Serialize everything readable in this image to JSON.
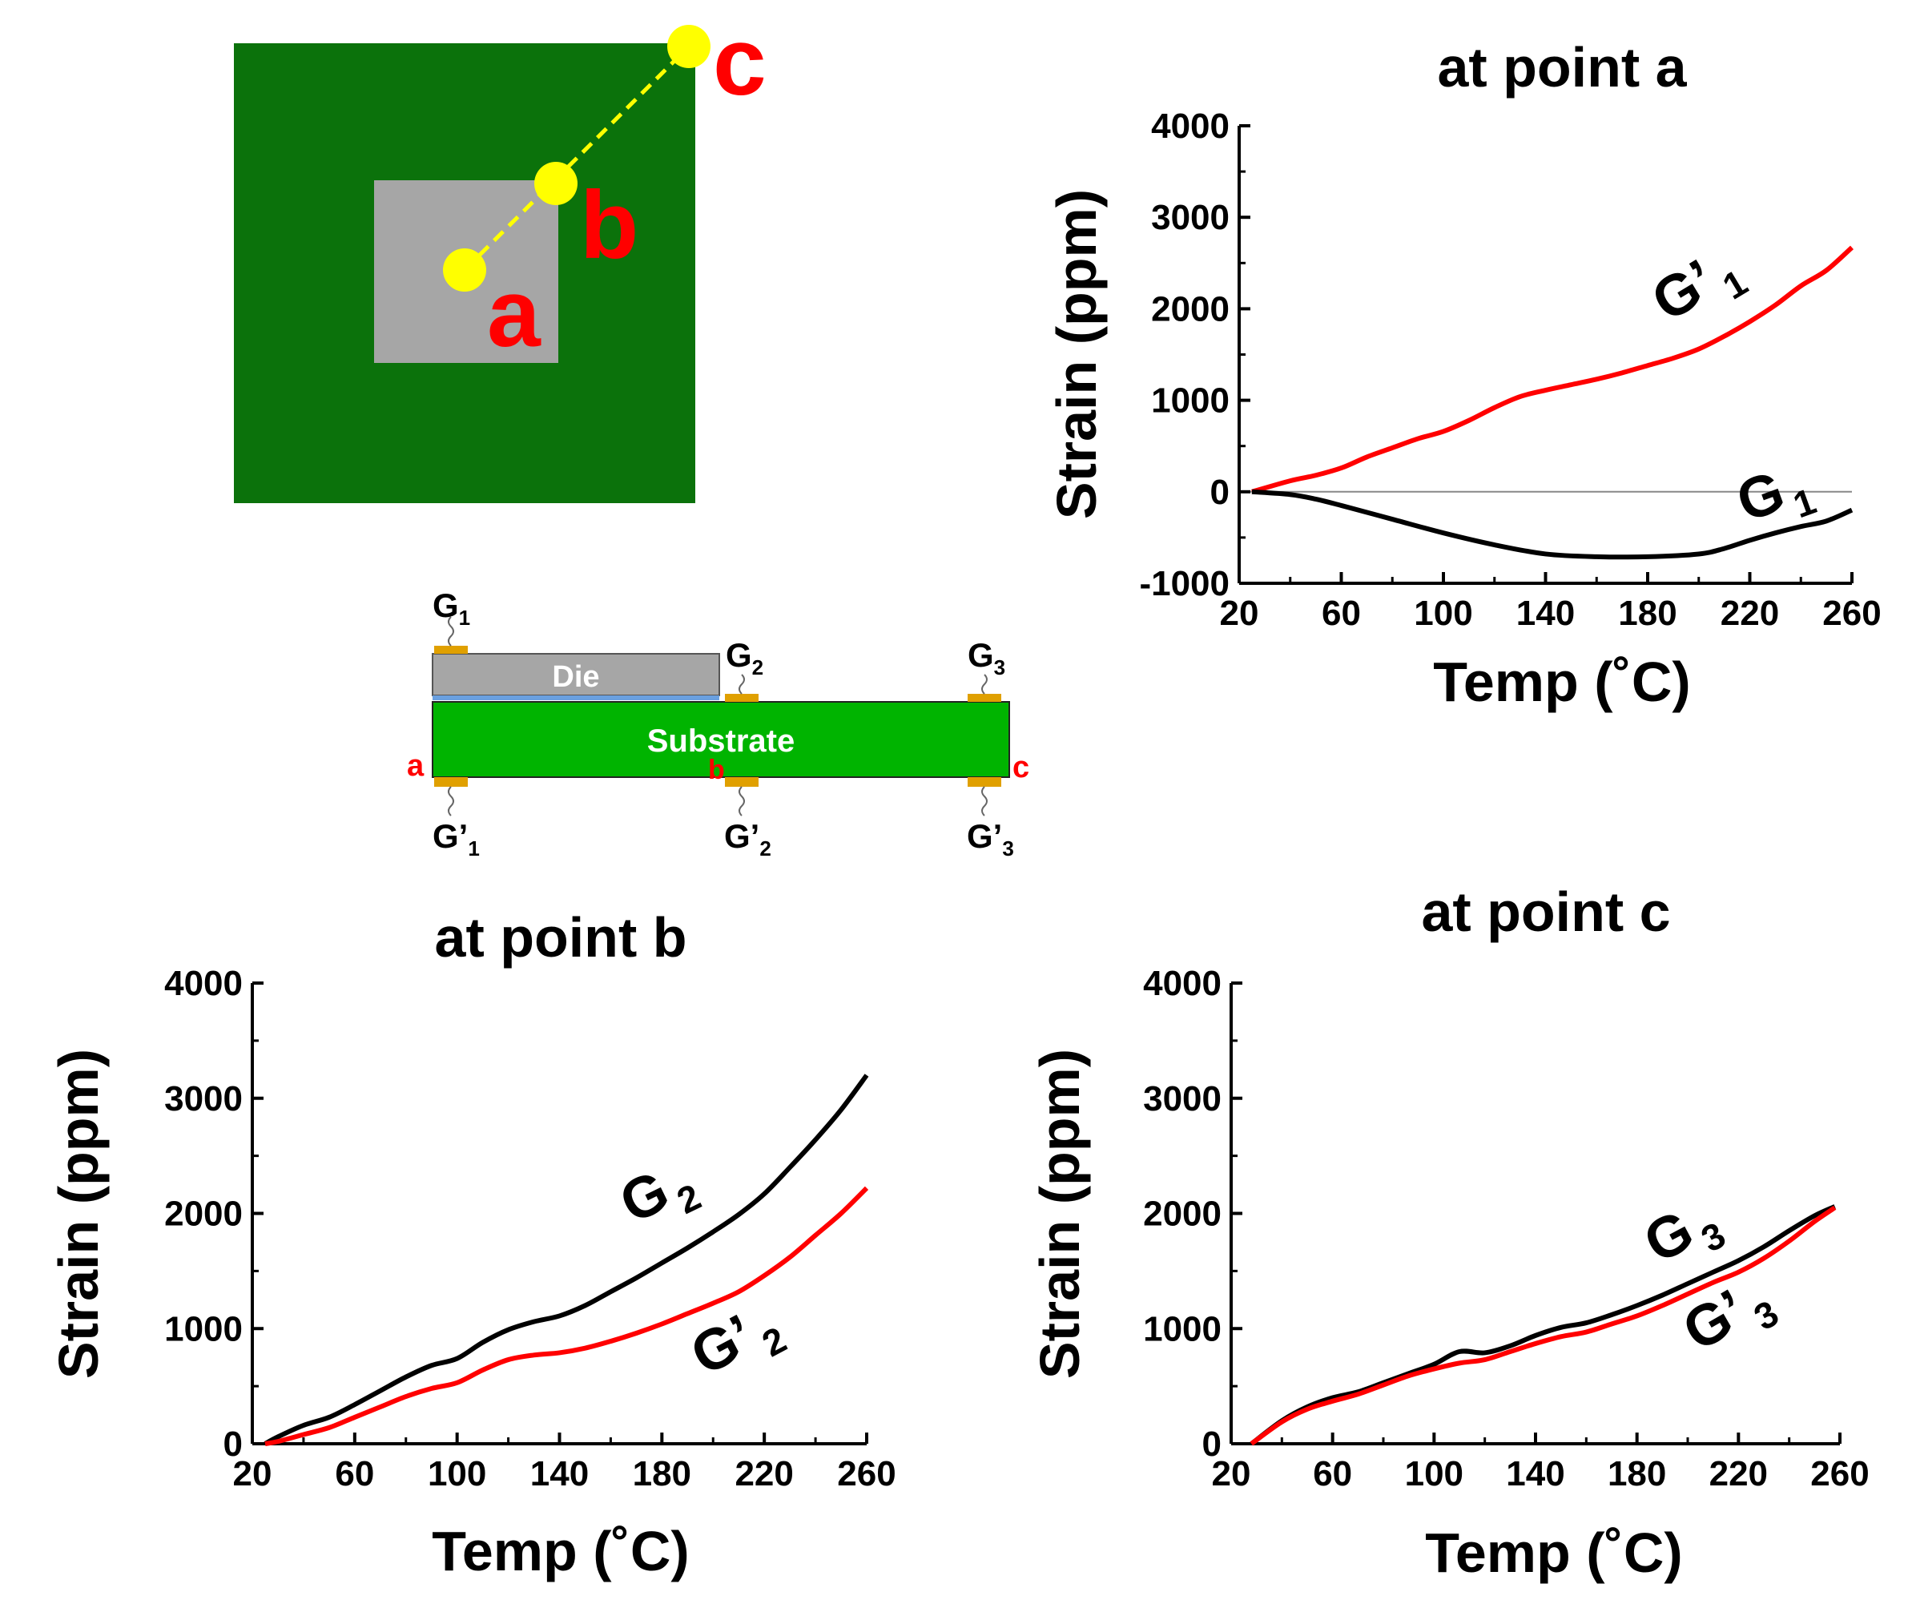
{
  "schematic": {
    "point_labels": [
      "a",
      "b",
      "c"
    ],
    "die_label": "Die",
    "substrate_label": "Substrate",
    "cross_section_edge_labels": [
      "a",
      "b",
      "c"
    ],
    "gauges_top": [
      {
        "base": "G",
        "prime": "",
        "sub": "1"
      },
      {
        "base": "G",
        "prime": "",
        "sub": "2"
      },
      {
        "base": "G",
        "prime": "",
        "sub": "3"
      }
    ],
    "gauges_bottom": [
      {
        "base": "G",
        "prime": "’",
        "sub": "1"
      },
      {
        "base": "G",
        "prime": "’",
        "sub": "2"
      },
      {
        "base": "G",
        "prime": "’",
        "sub": "3"
      }
    ],
    "colors": {
      "substrate_top_view": "#0b720b",
      "die": "#a6a6a6",
      "points": "#ffff00",
      "point_labels": "#ff0000",
      "substrate": "#00b400",
      "pad": "#e0a000"
    }
  },
  "chart_data": [
    {
      "id": "a",
      "type": "line",
      "title": "at point a",
      "xlabel": "Temp (˚C)",
      "ylabel": "Strain (ppm)",
      "xlim": [
        20,
        260
      ],
      "ylim": [
        -1000,
        4000
      ],
      "xticks": [
        "20",
        "60",
        "100",
        "140",
        "180",
        "220",
        "260"
      ],
      "yticks": [
        "-1000",
        "0",
        "1000",
        "2000",
        "3000",
        "4000"
      ],
      "zero_line": true,
      "series": [
        {
          "name": "G’1",
          "label_base": "G’",
          "label_sub": "1",
          "color": "#ff0000",
          "x": [
            25,
            40,
            50,
            60,
            70,
            80,
            90,
            100,
            110,
            120,
            130,
            140,
            150,
            160,
            170,
            180,
            190,
            200,
            210,
            220,
            230,
            240,
            250,
            260
          ],
          "y": [
            0,
            120,
            180,
            260,
            380,
            480,
            580,
            660,
            780,
            920,
            1040,
            1110,
            1170,
            1230,
            1300,
            1380,
            1460,
            1560,
            1700,
            1860,
            2040,
            2250,
            2420,
            2670
          ]
        },
        {
          "name": "G1",
          "label_base": "G",
          "label_sub": "1",
          "color": "#000000",
          "x": [
            25,
            40,
            50,
            60,
            80,
            100,
            120,
            140,
            160,
            180,
            200,
            210,
            220,
            230,
            240,
            250,
            260
          ],
          "y": [
            0,
            -30,
            -80,
            -150,
            -300,
            -450,
            -580,
            -680,
            -710,
            -710,
            -680,
            -620,
            -530,
            -450,
            -380,
            -320,
            -200
          ]
        }
      ]
    },
    {
      "id": "b",
      "type": "line",
      "title": "at point b",
      "xlabel": "Temp (˚C)",
      "ylabel": "Strain (ppm)",
      "xlim": [
        20,
        260
      ],
      "ylim": [
        0,
        4000
      ],
      "xticks": [
        "20",
        "60",
        "100",
        "140",
        "180",
        "220",
        "260"
      ],
      "yticks": [
        "0",
        "1000",
        "2000",
        "3000",
        "4000"
      ],
      "zero_line": false,
      "series": [
        {
          "name": "G2",
          "label_base": "G",
          "label_sub": "2",
          "color": "#000000",
          "x": [
            25,
            30,
            40,
            50,
            60,
            70,
            80,
            90,
            100,
            110,
            120,
            130,
            140,
            150,
            160,
            170,
            180,
            190,
            200,
            210,
            220,
            230,
            240,
            250,
            260
          ],
          "y": [
            0,
            60,
            160,
            230,
            340,
            460,
            580,
            680,
            740,
            880,
            990,
            1060,
            1110,
            1200,
            1320,
            1440,
            1570,
            1700,
            1840,
            1990,
            2170,
            2400,
            2640,
            2900,
            3200
          ]
        },
        {
          "name": "G’2",
          "label_base": "G’",
          "label_sub": "2",
          "color": "#ff0000",
          "x": [
            25,
            30,
            40,
            50,
            60,
            70,
            80,
            90,
            100,
            110,
            120,
            130,
            140,
            150,
            160,
            170,
            180,
            190,
            200,
            210,
            220,
            230,
            240,
            250,
            260
          ],
          "y": [
            0,
            20,
            80,
            140,
            230,
            320,
            410,
            480,
            530,
            640,
            730,
            770,
            790,
            830,
            890,
            960,
            1040,
            1130,
            1220,
            1320,
            1460,
            1620,
            1810,
            2000,
            2220
          ]
        }
      ]
    },
    {
      "id": "c",
      "type": "line",
      "title": "at point c",
      "xlabel": "Temp (˚C)",
      "ylabel": "Strain (ppm)",
      "xlim": [
        20,
        260
      ],
      "ylim": [
        0,
        4000
      ],
      "xticks": [
        "20",
        "60",
        "100",
        "140",
        "180",
        "220",
        "260"
      ],
      "yticks": [
        "0",
        "1000",
        "2000",
        "3000",
        "4000"
      ],
      "zero_line": false,
      "series": [
        {
          "name": "G3",
          "label_base": "G",
          "label_sub": "3",
          "color": "#000000",
          "x": [
            28,
            40,
            50,
            60,
            70,
            80,
            90,
            100,
            110,
            120,
            130,
            140,
            150,
            160,
            170,
            180,
            190,
            200,
            210,
            220,
            230,
            240,
            250,
            258
          ],
          "y": [
            0,
            200,
            320,
            400,
            450,
            530,
            610,
            690,
            800,
            790,
            850,
            940,
            1010,
            1050,
            1120,
            1200,
            1290,
            1390,
            1490,
            1590,
            1710,
            1850,
            1980,
            2060
          ]
        },
        {
          "name": "G’3",
          "label_base": "G’",
          "label_sub": "3",
          "color": "#ff0000",
          "x": [
            28,
            40,
            50,
            60,
            70,
            80,
            90,
            100,
            110,
            120,
            130,
            140,
            150,
            160,
            170,
            180,
            190,
            200,
            210,
            220,
            230,
            240,
            250,
            258
          ],
          "y": [
            0,
            190,
            300,
            370,
            430,
            510,
            590,
            650,
            700,
            730,
            800,
            870,
            930,
            970,
            1040,
            1110,
            1200,
            1300,
            1400,
            1490,
            1610,
            1760,
            1930,
            2050
          ]
        }
      ]
    }
  ]
}
